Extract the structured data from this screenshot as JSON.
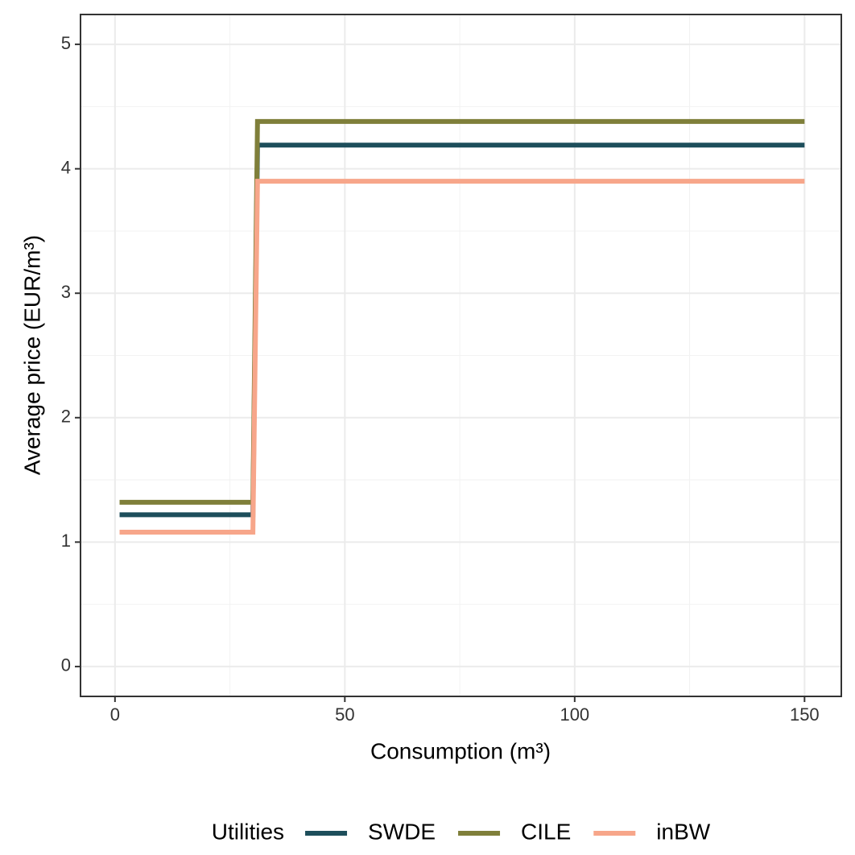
{
  "chart_data": {
    "type": "line",
    "x_label": "Consumption (m³)",
    "y_label": "Average price (EUR/m³)",
    "x": [
      1,
      30,
      31,
      150
    ],
    "series": [
      {
        "name": "SWDE",
        "color": "#1d4e5b",
        "values": [
          1.22,
          1.22,
          4.19,
          4.19
        ]
      },
      {
        "name": "CILE",
        "color": "#7f7f3a",
        "values": [
          1.32,
          1.32,
          4.38,
          4.38
        ]
      },
      {
        "name": "inBW",
        "color": "#f7a68a",
        "values": [
          1.08,
          1.08,
          3.9,
          3.9
        ]
      }
    ],
    "xlim": [
      -7.5,
      158
    ],
    "ylim": [
      -0.24,
      5.24
    ],
    "xticks": [
      0,
      50,
      100,
      150
    ],
    "yticks": [
      0,
      1,
      2,
      3,
      4,
      5
    ],
    "grid": true,
    "legend_title": "Utilities",
    "legend_position": "bottom"
  }
}
